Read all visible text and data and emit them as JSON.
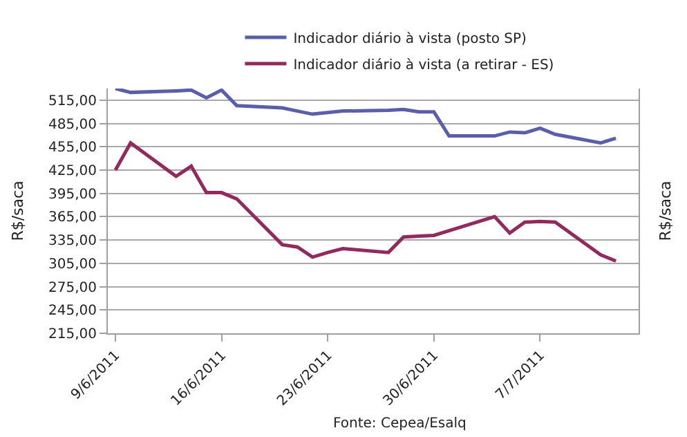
{
  "chart_data": {
    "type": "line",
    "ylabel": "R$/saca",
    "y2label": "R$/saca",
    "x": [
      "2011-06-09",
      "2011-06-10",
      "2011-06-13",
      "2011-06-14",
      "2011-06-15",
      "2011-06-16",
      "2011-06-17",
      "2011-06-20",
      "2011-06-21",
      "2011-06-22",
      "2011-06-23",
      "2011-06-24",
      "2011-06-27",
      "2011-06-28",
      "2011-06-29",
      "2011-06-30",
      "2011-07-01",
      "2011-07-04",
      "2011-07-05",
      "2011-07-06",
      "2011-07-07",
      "2011-07-08",
      "2011-07-11",
      "2011-07-12"
    ],
    "series": [
      {
        "name": "Indicador diário à vista (posto SP)",
        "color": "#5b5ea8",
        "values": [
          530,
          525,
          527,
          528,
          518,
          528,
          508,
          505,
          501,
          497,
          499,
          501,
          502,
          503,
          500,
          500,
          469,
          469,
          474,
          473,
          479,
          471,
          460,
          466
        ]
      },
      {
        "name": "Indicador diário à vista (a retirar - ES)",
        "color": "#932a5e",
        "values": [
          425,
          460,
          417,
          430,
          396,
          396,
          388,
          329,
          326,
          313,
          319,
          324,
          319,
          339,
          340,
          341,
          347,
          365,
          344,
          358,
          359,
          358,
          316,
          308
        ]
      }
    ],
    "xlim": [
      "2011-06-08T12:00",
      "2011-07-13T12:00"
    ],
    "xticks": [
      {
        "value": "2011-06-09",
        "label": "9/6/2011"
      },
      {
        "value": "2011-06-16",
        "label": "16/6/2011"
      },
      {
        "value": "2011-06-23",
        "label": "23/6/2011"
      },
      {
        "value": "2011-06-30",
        "label": "30/6/2011"
      },
      {
        "value": "2011-07-07",
        "label": "7/7/2011"
      }
    ],
    "ylim": [
      215,
      530
    ],
    "yticks": [
      {
        "value": 215,
        "label": "215,00"
      },
      {
        "value": 245,
        "label": "245,00"
      },
      {
        "value": 275,
        "label": "275,00"
      },
      {
        "value": 305,
        "label": "305,00"
      },
      {
        "value": 335,
        "label": "335,00"
      },
      {
        "value": 365,
        "label": "365,00"
      },
      {
        "value": 395,
        "label": "395,00"
      },
      {
        "value": 425,
        "label": "425,00"
      },
      {
        "value": 455,
        "label": "455,00"
      },
      {
        "value": 485,
        "label": "485,00"
      },
      {
        "value": 515,
        "label": "515,00"
      }
    ],
    "grid": "y",
    "legend": "top",
    "marker": "none",
    "line_style": "solid",
    "annotations": [
      "Fonte: Cepea/Esalq"
    ]
  }
}
